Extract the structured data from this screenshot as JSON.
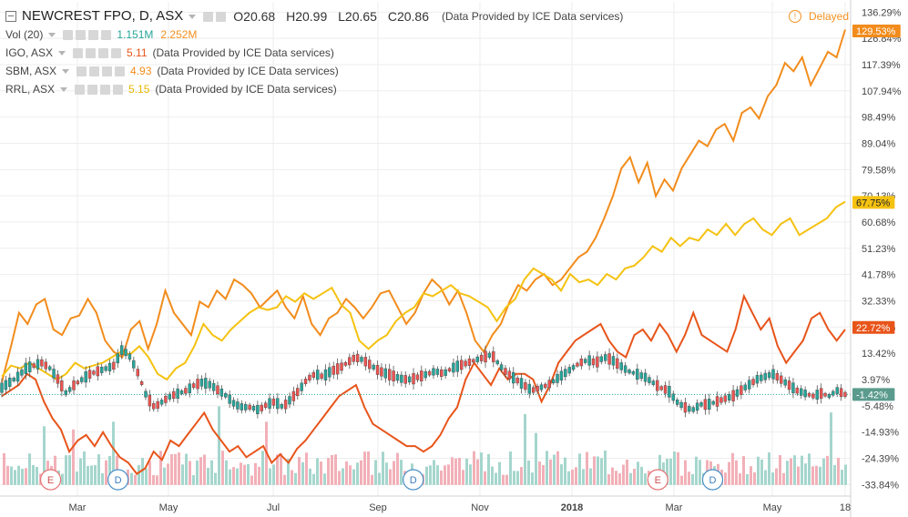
{
  "header": {
    "symbol": "NEWCREST FPO, D, ASX",
    "open": "O20.68",
    "high": "H20.99",
    "low": "L20.65",
    "close": "C20.86",
    "source": "(Data Provided by ICE Data services)",
    "delayed": "Delayed"
  },
  "studies": [
    {
      "name": "Vol (20)",
      "value": "1.151M",
      "value2": "2.252M",
      "color": "#26a69a",
      "color2": "#f5911f"
    },
    {
      "name": "IGO, ASX",
      "value": "5.11",
      "source": "(Data Provided by ICE Data services)",
      "color": "#e8541a"
    },
    {
      "name": "SBM, ASX",
      "value": "4.93",
      "source": "(Data Provided by ICE Data services)",
      "color": "#f28c1c"
    },
    {
      "name": "RRL, ASX",
      "value": "5.15",
      "source": "(Data Provided by ICE Data services)",
      "color": "#f5c211"
    }
  ],
  "colors": {
    "igo": "#e8541a",
    "sbm": "#f28c1c",
    "rrl": "#f5c211",
    "candle_up": "#26a69a",
    "candle_down": "#ef5350",
    "vol_up": "#a5d6cd",
    "vol_down": "#f2b0b8",
    "main_last": "#5b9b8e",
    "zero_line": "#26a69a"
  },
  "chart_data": {
    "type": "line",
    "x_ticks": [
      "Mar",
      "May",
      "Jul",
      "Sep",
      "Nov",
      "2018",
      "Mar",
      "May",
      "18"
    ],
    "y_ticks": [
      "136.29%",
      "126.84%",
      "117.39%",
      "107.94%",
      "98.49%",
      "89.04%",
      "79.58%",
      "70.13%",
      "60.68%",
      "51.23%",
      "41.78%",
      "32.33%",
      "22.88%",
      "13.42%",
      "3.97%",
      "-5.48%",
      "-14.93%",
      "-24.39%",
      "-33.84%"
    ],
    "ylim": [
      -38,
      140
    ],
    "grid": true,
    "last_values": [
      {
        "series": "SBM, ASX",
        "label": "129.53%",
        "value": 129.53,
        "color": "#f28c1c"
      },
      {
        "series": "RRL, ASX",
        "label": "67.75%",
        "value": 67.75,
        "color": "#f5c211"
      },
      {
        "series": "IGO, ASX",
        "label": "22.72%",
        "value": 22.72,
        "color": "#e8541a"
      },
      {
        "series": "NEWCREST FPO, D, ASX",
        "label": "-1.42%",
        "value": -1.42,
        "color": "#5b9b8e"
      }
    ],
    "events": [
      {
        "label": "E",
        "x": 0.06
      },
      {
        "label": "D",
        "x": 0.14
      },
      {
        "label": "D",
        "x": 0.49
      },
      {
        "label": "E",
        "x": 0.78
      },
      {
        "label": "D",
        "x": 0.845
      }
    ],
    "series": [
      {
        "name": "SBM, ASX",
        "color": "#f28c1c",
        "values": [
          3,
          15,
          28,
          24,
          31,
          33,
          22,
          20,
          26,
          27,
          33,
          28,
          18,
          14,
          12,
          22,
          25,
          15,
          24,
          36,
          28,
          24,
          20,
          32,
          30,
          36,
          33,
          40,
          38,
          35,
          30,
          33,
          36,
          30,
          26,
          34,
          24,
          20,
          26,
          28,
          33,
          30,
          26,
          30,
          35,
          36,
          30,
          24,
          28,
          35,
          40,
          37,
          31,
          36,
          28,
          18,
          14,
          20,
          24,
          32,
          38,
          36,
          40,
          42,
          38,
          40,
          44,
          48,
          50,
          55,
          62,
          70,
          80,
          84,
          75,
          82,
          70,
          76,
          72,
          80,
          85,
          90,
          88,
          94,
          96,
          90,
          100,
          102,
          98,
          106,
          110,
          118,
          115,
          120,
          110,
          116,
          122,
          120,
          130
        ]
      },
      {
        "name": "RRL, ASX",
        "color": "#f5c211",
        "values": [
          5,
          9,
          8,
          10,
          8,
          6,
          4,
          6,
          10,
          8,
          9,
          10,
          12,
          14,
          13,
          16,
          12,
          6,
          4,
          8,
          10,
          16,
          24,
          20,
          18,
          22,
          25,
          28,
          30,
          29,
          30,
          34,
          32,
          35,
          33,
          35,
          37,
          31,
          28,
          18,
          15,
          18,
          20,
          25,
          28,
          30,
          35,
          34,
          36,
          38,
          35,
          34,
          32,
          30,
          25,
          30,
          33,
          40,
          44,
          42,
          40,
          36,
          42,
          39,
          40,
          38,
          42,
          40,
          44,
          45,
          48,
          52,
          50,
          55,
          52,
          55,
          54,
          58,
          56,
          60,
          56,
          60,
          62,
          58,
          56,
          60,
          62,
          56,
          58,
          60,
          62,
          66,
          68
        ]
      },
      {
        "name": "IGO, ASX",
        "color": "#e8541a",
        "values": [
          -2,
          0,
          2,
          6,
          4,
          -4,
          -10,
          -14,
          -22,
          -18,
          -16,
          -20,
          -15,
          -20,
          -24,
          -26,
          -30,
          -28,
          -22,
          -25,
          -18,
          -20,
          -16,
          -12,
          -8,
          -14,
          -18,
          -22,
          -20,
          -24,
          -22,
          -20,
          -26,
          -23,
          -26,
          -21,
          -18,
          -14,
          -10,
          -6,
          -2,
          0,
          2,
          -6,
          -12,
          -14,
          -16,
          -18,
          -20,
          -20,
          -22,
          -20,
          -16,
          -10,
          -6,
          4,
          10,
          6,
          2,
          8,
          4,
          6,
          6,
          4,
          -4,
          2,
          10,
          14,
          18,
          20,
          22,
          24,
          18,
          14,
          12,
          20,
          22,
          18,
          24,
          20,
          14,
          20,
          28,
          20,
          18,
          16,
          14,
          22,
          34,
          28,
          22,
          26,
          16,
          10,
          14,
          18,
          26,
          28,
          22,
          18,
          22
        ]
      },
      {
        "name": "NEWCREST FPO, D, ASX",
        "color": "#26a69a",
        "values": [
          1,
          3,
          5,
          8,
          9,
          10,
          8,
          4,
          -1,
          2,
          4,
          6,
          7,
          8,
          9,
          15,
          12,
          6,
          -2,
          -6,
          -4,
          -2,
          -1,
          0,
          2,
          3,
          2,
          0,
          -2,
          -5,
          -6,
          -6,
          -7,
          -5,
          -4,
          -6,
          -3,
          0,
          4,
          6,
          5,
          7,
          8,
          10,
          12,
          11,
          9,
          7,
          6,
          5,
          4,
          4,
          5,
          6,
          7,
          6,
          8,
          9,
          10,
          11,
          12,
          13,
          9,
          6,
          4,
          2,
          0,
          1,
          2,
          4,
          6,
          8,
          10,
          11,
          10,
          12,
          11,
          9,
          7,
          6,
          5,
          3,
          1,
          0,
          -4,
          -6,
          -7,
          -5,
          -5,
          -4,
          -3,
          -2,
          0,
          2,
          4,
          5,
          6,
          4,
          2,
          0,
          -1,
          -2,
          -1,
          -2,
          0,
          -1.4
        ]
      }
    ]
  }
}
